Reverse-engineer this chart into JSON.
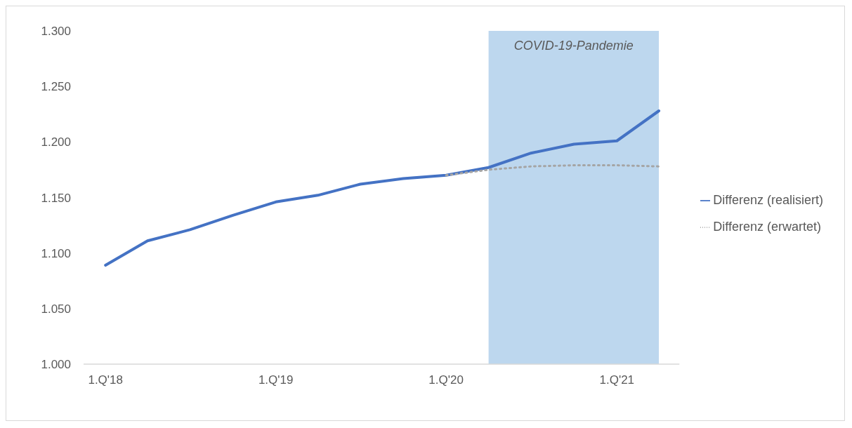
{
  "chart_data": {
    "type": "line",
    "x": [
      "2018-01",
      "2018-04",
      "2018-07",
      "2018-10",
      "2019-01",
      "2019-04",
      "2019-07",
      "2019-10",
      "2020-01",
      "2020-04",
      "2020-07",
      "2020-10",
      "2021-01",
      "2021-04"
    ],
    "series": [
      {
        "name": "Differenz (realisiert)",
        "color": "#4472c4",
        "line_style": "solid",
        "values": [
          1.089,
          1.111,
          1.121,
          1.134,
          1.146,
          1.152,
          1.162,
          1.167,
          1.17,
          1.177,
          1.19,
          1.198,
          1.201,
          1.228
        ]
      },
      {
        "name": "Differenz (erwartet)",
        "color": "#a5a5a5",
        "line_style": "dotted",
        "values": [
          null,
          null,
          null,
          null,
          null,
          null,
          null,
          null,
          1.17,
          1.175,
          1.178,
          1.179,
          1.179,
          1.178
        ]
      }
    ],
    "xlim": [
      "2017-11-15",
      "2021-05-15"
    ],
    "xticks": [
      {
        "value": "2018-01",
        "label": "1.Q'18"
      },
      {
        "value": "2019-01",
        "label": "1.Q'19"
      },
      {
        "value": "2020-01",
        "label": "1.Q'20"
      },
      {
        "value": "2021-01",
        "label": "1.Q'21"
      }
    ],
    "ylim": [
      1.0,
      1.3
    ],
    "yticks": [
      {
        "value": 1.0,
        "label": "1.000"
      },
      {
        "value": 1.05,
        "label": "1.050"
      },
      {
        "value": 1.1,
        "label": "1.100"
      },
      {
        "value": 1.15,
        "label": "1.150"
      },
      {
        "value": 1.2,
        "label": "1.200"
      },
      {
        "value": 1.25,
        "label": "1.250"
      },
      {
        "value": 1.3,
        "label": "1.300"
      }
    ],
    "bands": [
      {
        "axis": "x",
        "from": "2020-04",
        "to": "2021-04",
        "label": "COVID-19-Pandemie",
        "color": "#bdd7ee"
      }
    ],
    "grid": false,
    "legend": "right"
  }
}
